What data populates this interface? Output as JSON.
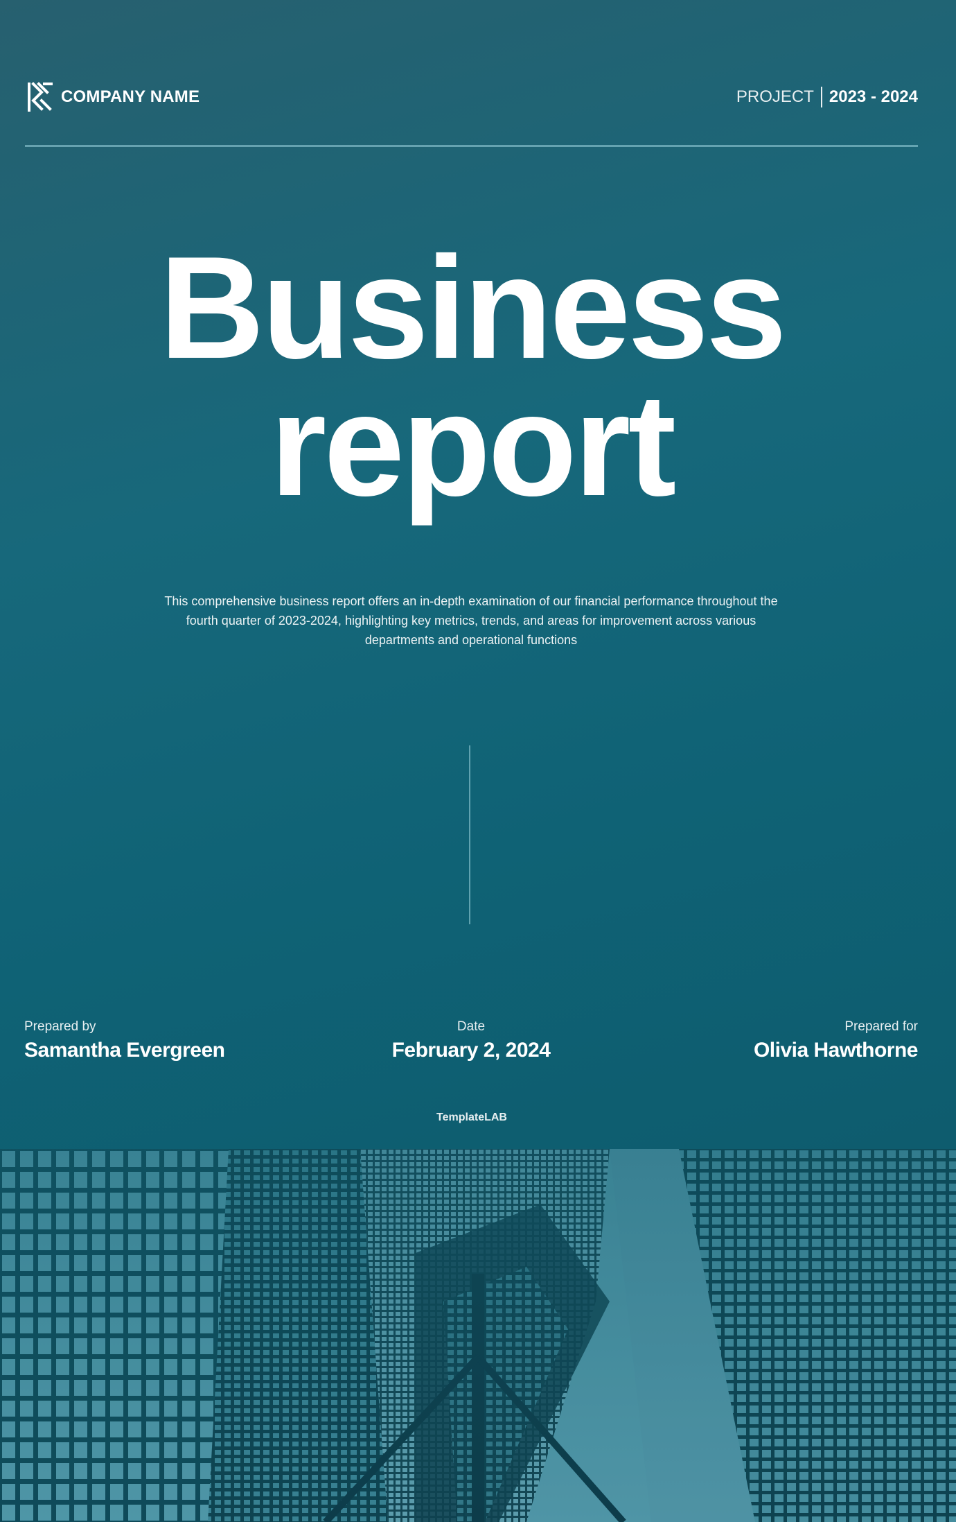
{
  "header": {
    "company_name": "COMPANY NAME",
    "project_label": "PROJECT",
    "project_years": "2023 - 2024",
    "logo_icon": "company-logo-icon"
  },
  "title": {
    "line1": "Business",
    "line2": "report"
  },
  "description": "This comprehensive business report offers an in-depth examination of our financial performance throughout the fourth quarter of 2023-2024, highlighting key metrics, trends, and areas for improvement across various departments and operational functions",
  "meta": {
    "prepared_by_label": "Prepared by",
    "prepared_by_name": "Samantha Evergreen",
    "date_label": "Date",
    "date_value": "February 2, 2024",
    "prepared_for_label": "Prepared for",
    "prepared_for_name": "Olivia Hawthorne"
  },
  "footer": {
    "credit": "TemplateLAB"
  },
  "colors": {
    "cover_top": "#27606f",
    "cover_bottom": "#0e5c6e",
    "photo_tint": "#1a6a7c",
    "text": "#ffffff"
  }
}
